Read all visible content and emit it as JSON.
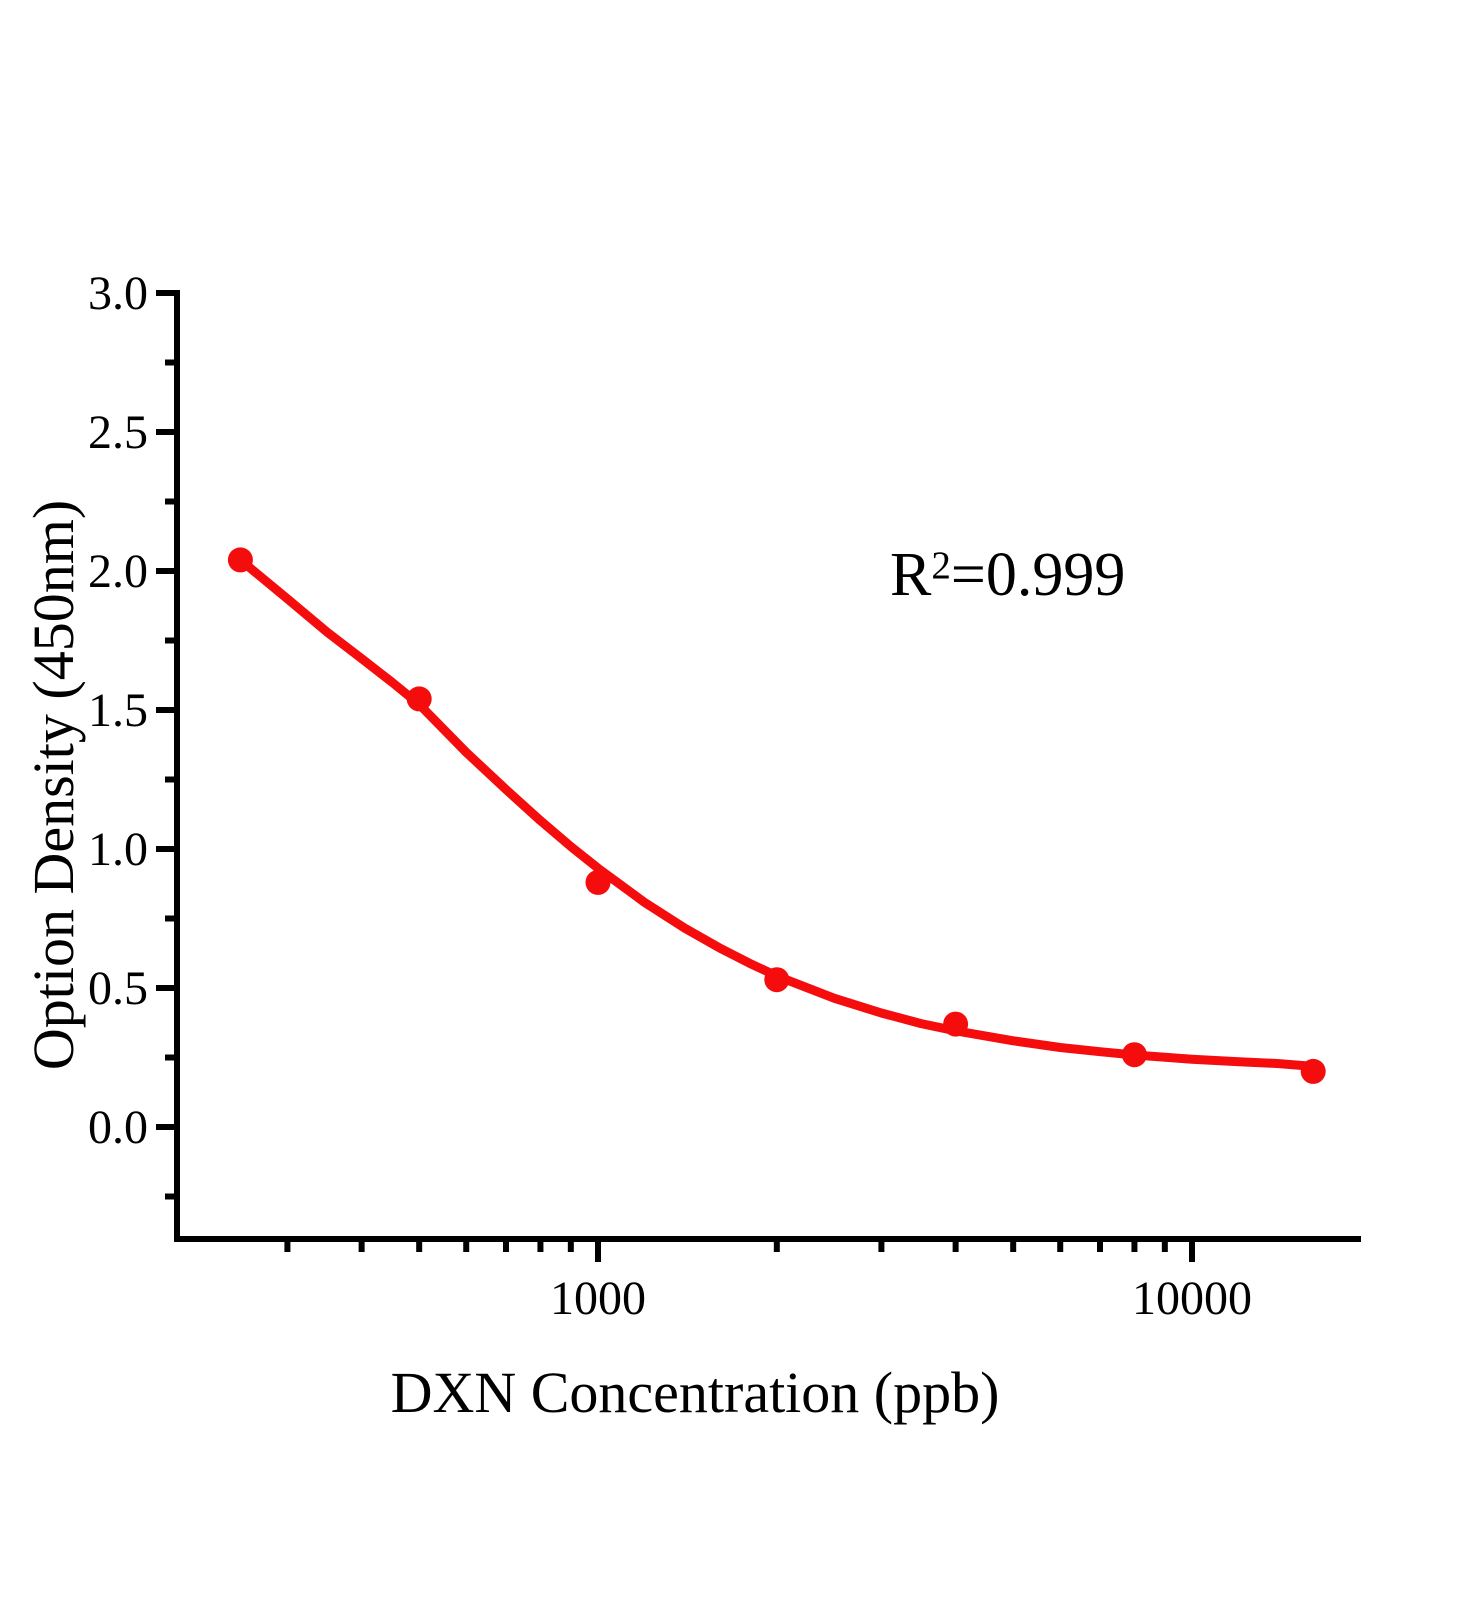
{
  "chart": {
    "y_axis": {
      "title": "Option Density (450nm)"
    },
    "x_axis": {
      "title": "DXN Concentration (ppb)"
    },
    "annotation": {
      "base": "R",
      "exponent": "2",
      "value": "=0.999"
    }
  },
  "chart_data": {
    "type": "scatter",
    "title": "",
    "xlabel": "DXN Concentration (ppb)",
    "ylabel": "Option Density (450nm)",
    "annotation": "R²=0.999",
    "x_scale": "log",
    "xlim": [
      200,
      19000
    ],
    "ylim": [
      -0.4,
      3.0
    ],
    "grid": false,
    "legend": "none",
    "colors": {
      "curve": "#f50d0d",
      "marker": "#f50d0d",
      "axis": "#000000"
    },
    "y_major_ticks": [
      0.0,
      0.5,
      1.0,
      1.5,
      2.0,
      2.5,
      3.0
    ],
    "y_major_tick_labels": [
      "0.0",
      "0.5",
      "1.0",
      "1.5",
      "2.0",
      "2.5",
      "3.0"
    ],
    "y_minor_ticks": [
      -0.25,
      0.25,
      0.75,
      1.25,
      1.75,
      2.25,
      2.75
    ],
    "x_major_ticks": [
      1000,
      10000
    ],
    "x_major_tick_labels": [
      "1000",
      "10000"
    ],
    "x_minor_ticks": [
      300,
      400,
      500,
      600,
      700,
      800,
      900,
      2000,
      3000,
      4000,
      5000,
      6000,
      7000,
      8000,
      9000
    ],
    "series": [
      {
        "name": "standard-points",
        "type": "scatter",
        "x": [
          250,
          500,
          1000,
          2000,
          4000,
          8000,
          16000
        ],
        "y": [
          2.04,
          1.54,
          0.88,
          0.53,
          0.37,
          0.26,
          0.2
        ]
      },
      {
        "name": "fit-curve",
        "type": "line",
        "x": [
          250,
          300,
          350,
          400,
          450,
          500,
          600,
          700,
          800,
          900,
          1000,
          1200,
          1400,
          1600,
          1800,
          2000,
          2500,
          3000,
          3500,
          4000,
          5000,
          6000,
          7000,
          8000,
          10000,
          12000,
          14000,
          16000
        ],
        "y": [
          2.04,
          1.9,
          1.78,
          1.685,
          1.6,
          1.52,
          1.348,
          1.214,
          1.102,
          1.009,
          0.931,
          0.807,
          0.715,
          0.645,
          0.589,
          0.543,
          0.463,
          0.41,
          0.372,
          0.346,
          0.31,
          0.286,
          0.271,
          0.259,
          0.244,
          0.235,
          0.228,
          0.218
        ]
      }
    ]
  }
}
